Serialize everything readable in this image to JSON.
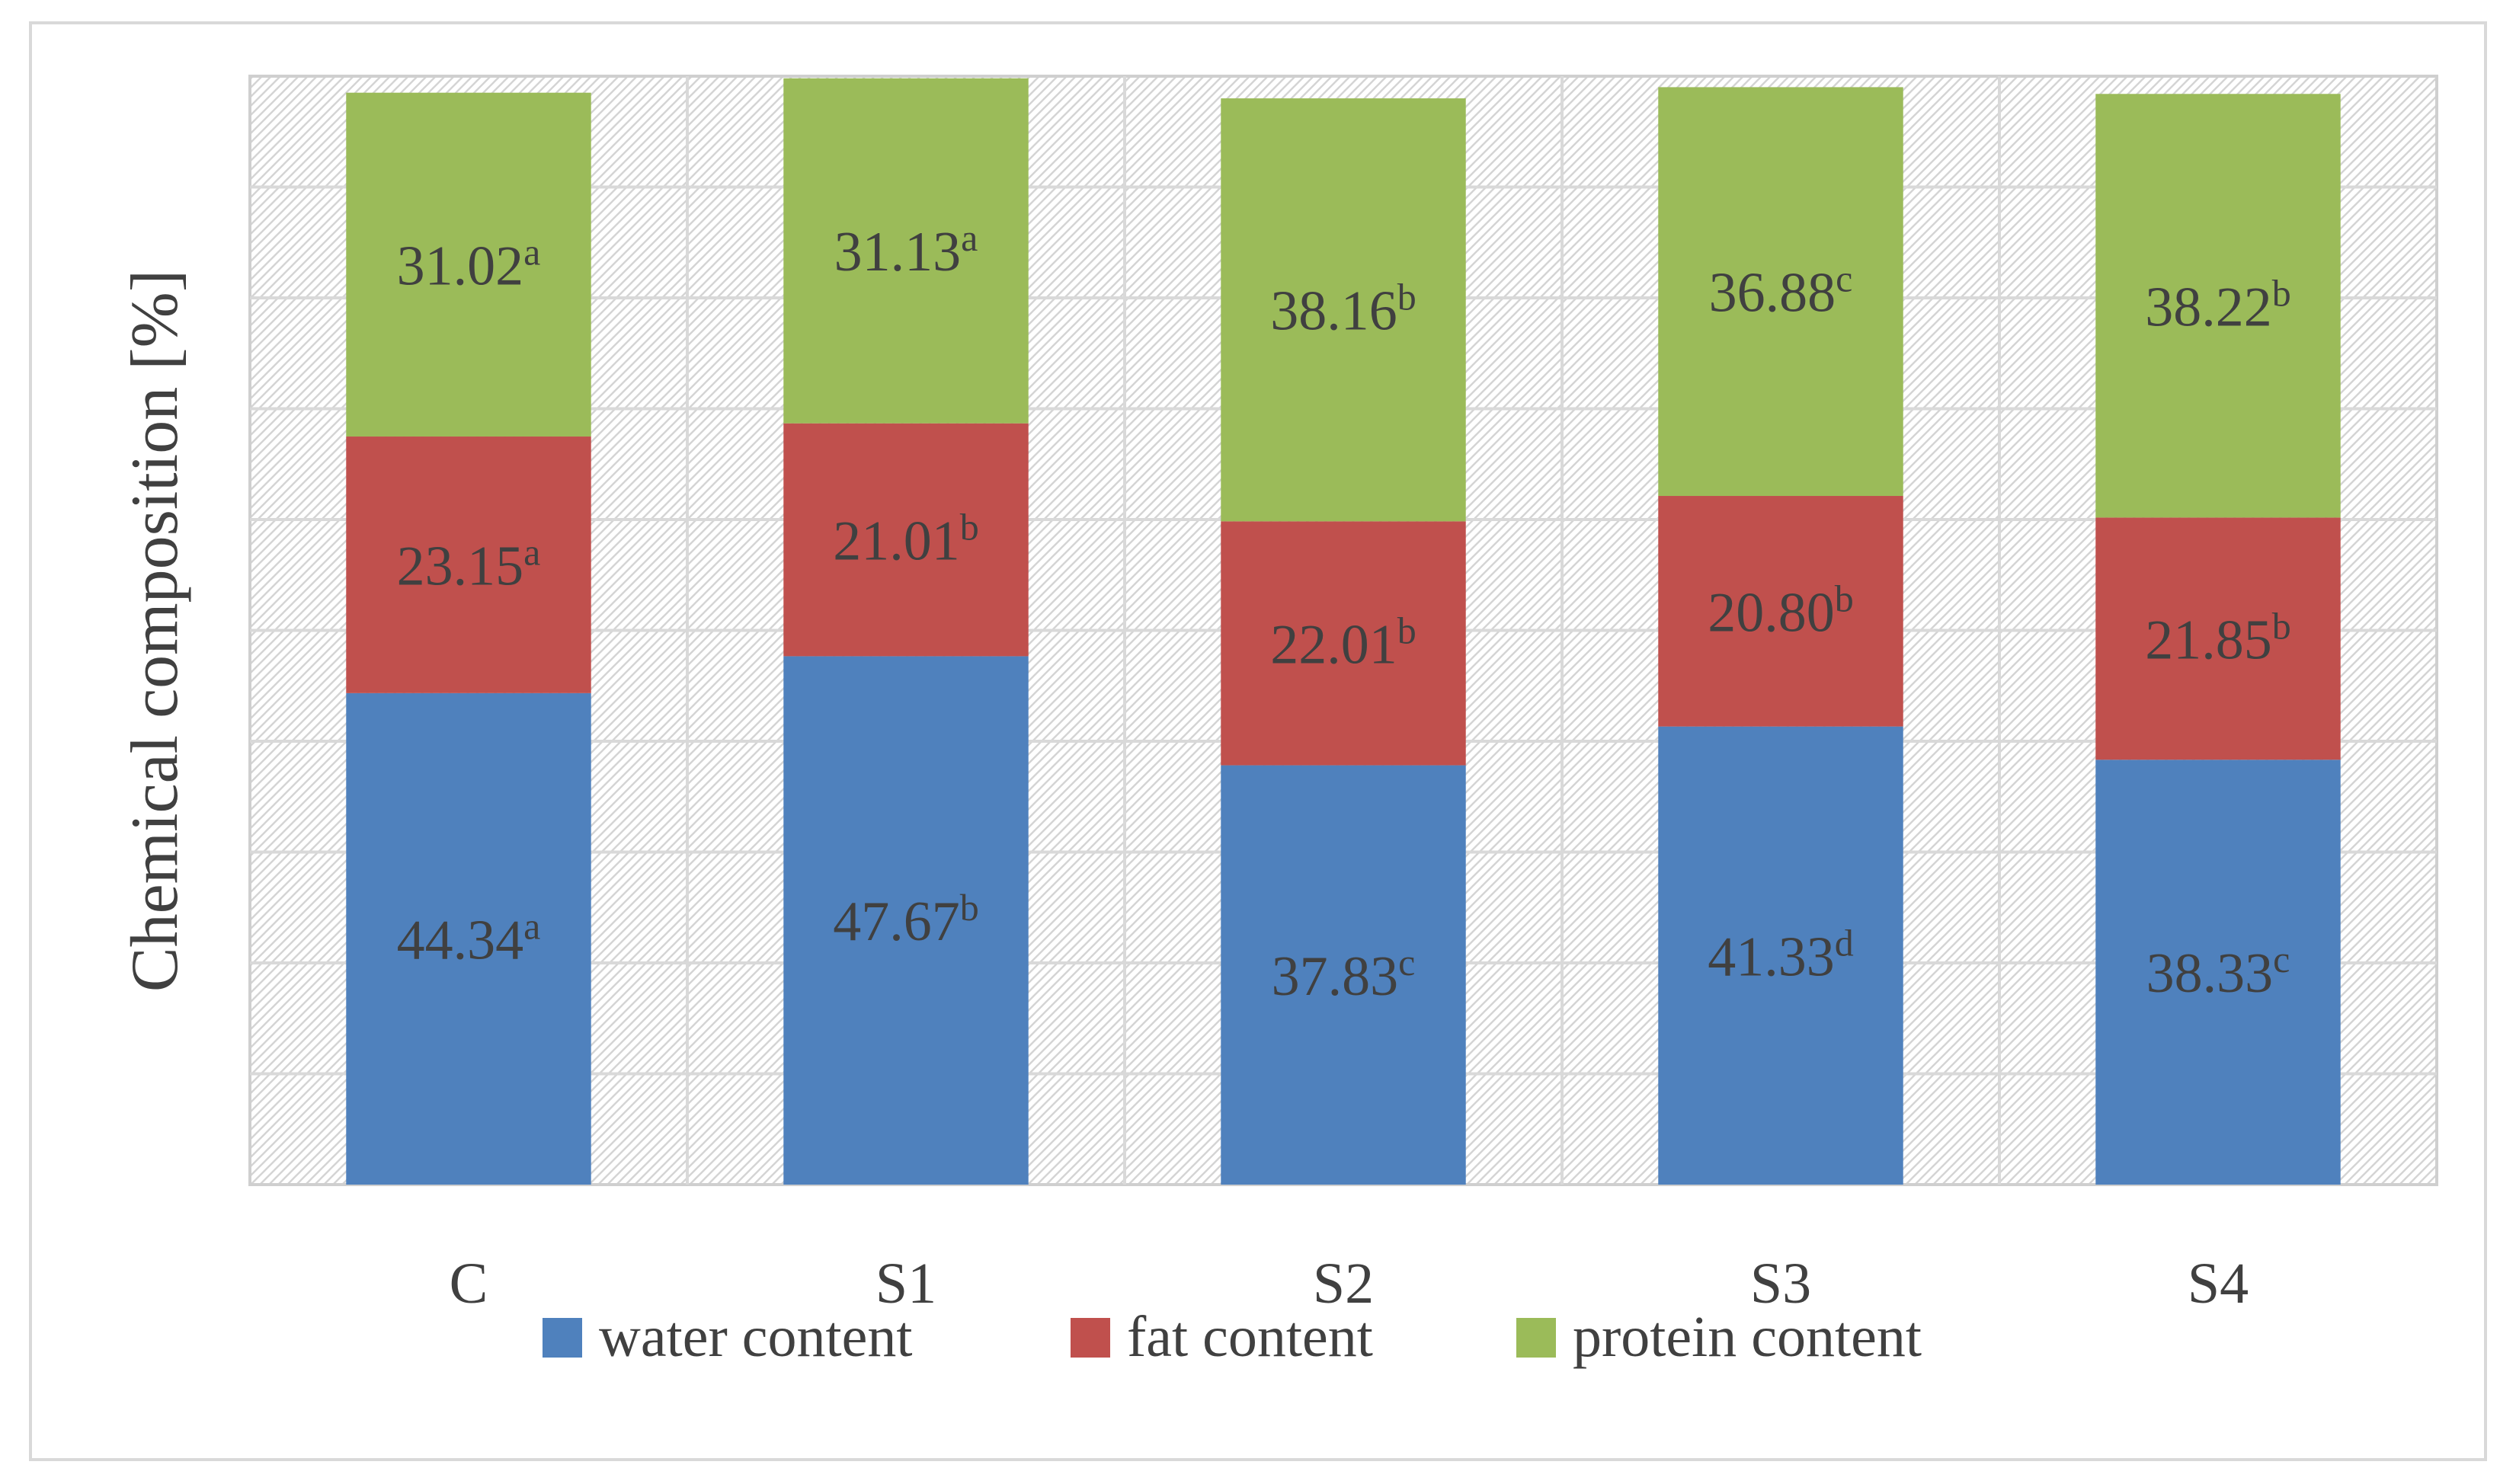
{
  "chart_data": {
    "type": "bar",
    "stacked": true,
    "categories": [
      "C",
      "S1",
      "S2",
      "S3",
      "S4"
    ],
    "series": [
      {
        "name": "water content",
        "color": "#4f81bd",
        "values": [
          44.34,
          47.67,
          37.83,
          41.33,
          38.33
        ],
        "labels": [
          {
            "value": "44.34",
            "sup": "a"
          },
          {
            "value": "47.67",
            "sup": "b"
          },
          {
            "value": "37.83",
            "sup": "c"
          },
          {
            "value": "41.33",
            "sup": "d"
          },
          {
            "value": "38.33",
            "sup": "c"
          }
        ]
      },
      {
        "name": "fat content",
        "color": "#c0504d",
        "values": [
          23.15,
          21.01,
          22.01,
          20.8,
          21.85
        ],
        "labels": [
          {
            "value": "23.15",
            "sup": "a"
          },
          {
            "value": "21.01",
            "sup": "b"
          },
          {
            "value": "22.01",
            "sup": "b"
          },
          {
            "value": "20.80",
            "sup": "b"
          },
          {
            "value": "21.85",
            "sup": "b"
          }
        ]
      },
      {
        "name": "protein content",
        "color": "#9bbb59",
        "values": [
          31.02,
          31.13,
          38.16,
          36.88,
          38.22
        ],
        "labels": [
          {
            "value": "31.02",
            "sup": "a"
          },
          {
            "value": "31.13",
            "sup": "a"
          },
          {
            "value": "38.16",
            "sup": "b"
          },
          {
            "value": "36.88",
            "sup": "c"
          },
          {
            "value": "38.22",
            "sup": "b"
          }
        ]
      }
    ],
    "xlabel": "",
    "ylabel": "Chemical composition [%]",
    "ylim": [
      0,
      100
    ],
    "grid": true,
    "legend": "bottom"
  }
}
